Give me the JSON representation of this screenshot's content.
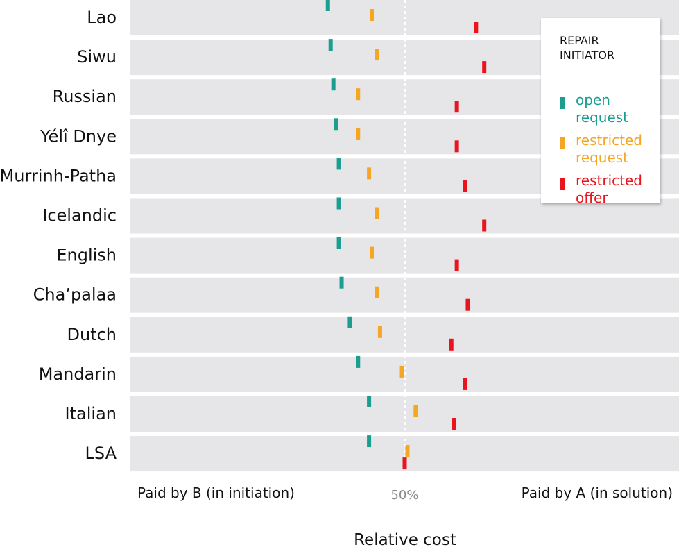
{
  "chart_data": {
    "type": "dot",
    "title": "",
    "xlabel": "Relative cost",
    "x_left_label": "Paid by B (in initiation)",
    "x_right_label": "Paid by A (in solution)",
    "center_label": "50%",
    "xlim": [
      0,
      100
    ],
    "reference_line": 50,
    "categories": [
      "Lao",
      "Siwu",
      "Russian",
      "Yélî Dnye",
      "Murrinh-Patha",
      "Icelandic",
      "English",
      "Cha’palaa",
      "Dutch",
      "Mandarin",
      "Italian",
      "LSA"
    ],
    "legend": {
      "title": "REPAIR INITIATOR",
      "position": "top-right"
    },
    "series": [
      {
        "name": "open request",
        "color": "#1a9e8f",
        "values": [
          36,
          36.5,
          37,
          37.5,
          38,
          38,
          38,
          38.5,
          40,
          41.5,
          43.5,
          43.5
        ]
      },
      {
        "name": "restricted request",
        "color": "#f5a623",
        "values": [
          44,
          45,
          41.5,
          41.5,
          43.5,
          45,
          44,
          45,
          45.5,
          49.5,
          52,
          50.5
        ]
      },
      {
        "name": "restricted offer",
        "color": "#e8141e",
        "values": [
          63,
          64.5,
          59.5,
          59.5,
          61,
          64.5,
          59.5,
          61.5,
          58.5,
          61,
          59,
          50
        ]
      }
    ]
  }
}
